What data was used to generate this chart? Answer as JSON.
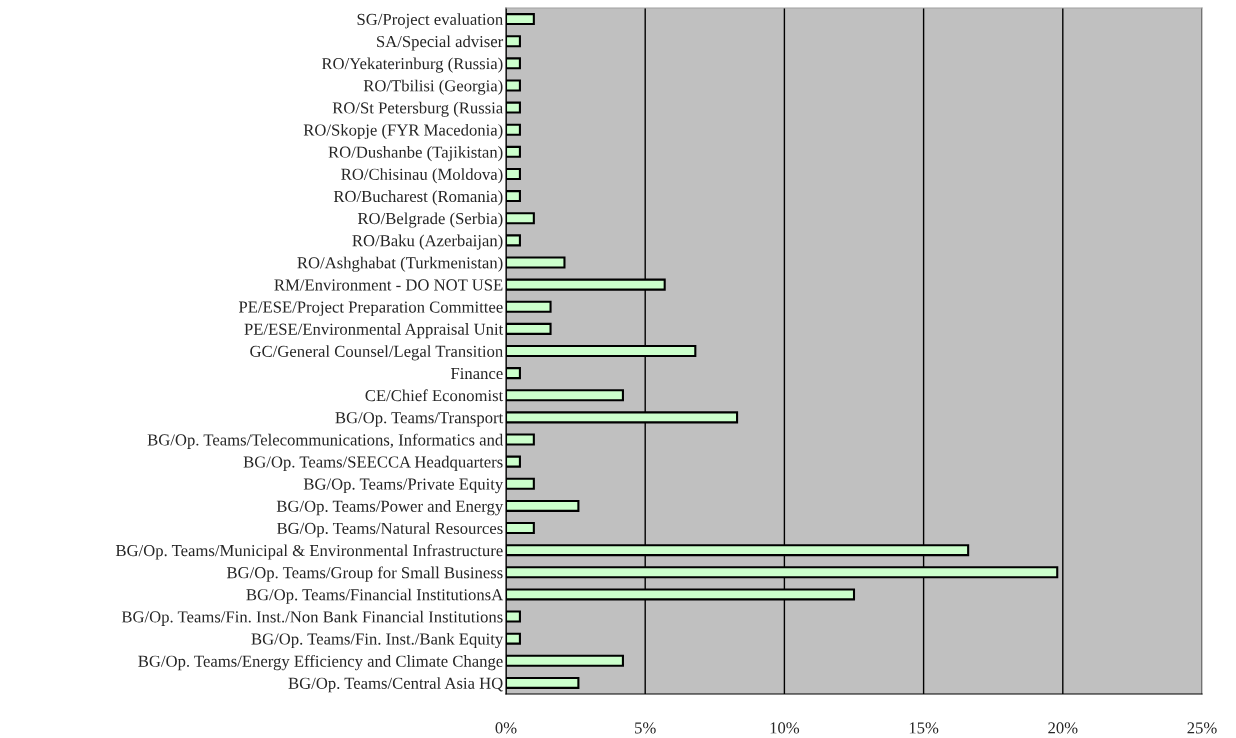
{
  "chart_data": {
    "type": "bar",
    "orientation": "horizontal",
    "categories": [
      "SG/Project evaluation",
      "SA/Special adviser",
      "RO/Yekaterinburg (Russia)",
      "RO/Tbilisi (Georgia)",
      "RO/St Petersburg (Russia",
      "RO/Skopje (FYR Macedonia)",
      "RO/Dushanbe (Tajikistan)",
      "RO/Chisinau (Moldova)",
      "RO/Bucharest (Romania)",
      "RO/Belgrade (Serbia)",
      "RO/Baku (Azerbaijan)",
      "RO/Ashghabat (Turkmenistan)",
      "RM/Environment - DO NOT USE",
      "PE/ESE/Project Preparation Committee",
      "PE/ESE/Environmental Appraisal Unit",
      "GC/General Counsel/Legal Transition",
      "Finance",
      "CE/Chief Economist",
      "BG/Op. Teams/Transport",
      "BG/Op. Teams/Telecommunications, Informatics and",
      "BG/Op. Teams/SEECCA Headquarters",
      "BG/Op. Teams/Private Equity",
      "BG/Op. Teams/Power and Energy",
      "BG/Op. Teams/Natural Resources",
      "BG/Op. Teams/Municipal & Environmental Infrastructure",
      "BG/Op. Teams/Group for Small Business",
      "BG/Op. Teams/Financial InstitutionsA",
      "BG/Op. Teams/Fin. Inst./Non Bank Financial Institutions",
      "BG/Op. Teams/Fin. Inst./Bank Equity",
      "BG/Op. Teams/Energy Efficiency and Climate Change",
      "BG/Op. Teams/Central Asia HQ"
    ],
    "values": [
      1.0,
      0.5,
      0.5,
      0.5,
      0.5,
      0.5,
      0.5,
      0.5,
      0.5,
      1.0,
      0.5,
      2.1,
      5.7,
      1.6,
      1.6,
      6.8,
      0.5,
      4.2,
      8.3,
      1.0,
      0.5,
      1.0,
      2.6,
      1.0,
      16.6,
      19.8,
      12.5,
      0.5,
      0.5,
      4.2,
      2.6
    ],
    "color": "#ccffcc",
    "xlim": [
      0,
      25
    ],
    "xticks": [
      {
        "value": 0,
        "label": "0%"
      },
      {
        "value": 5,
        "label": "5%"
      },
      {
        "value": 10,
        "label": "10%"
      },
      {
        "value": 15,
        "label": "15%"
      },
      {
        "value": 20,
        "label": "20%"
      },
      {
        "value": 25,
        "label": "25%"
      }
    ],
    "grid": "x",
    "legend": false
  }
}
